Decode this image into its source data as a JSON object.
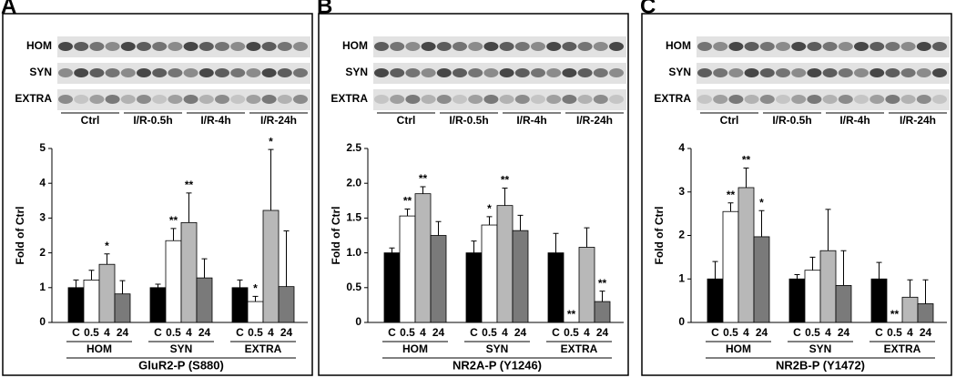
{
  "chart_data": [
    {
      "type": "bar",
      "panel_label": "A",
      "blot_rows": [
        "HOM",
        "SYN",
        "EXTRA"
      ],
      "blot_groups": [
        "Ctrl",
        "I/R-0.5h",
        "I/R-4h",
        "I/R-24h"
      ],
      "ylabel": "Fold of Ctrl",
      "xlabel": "GluR2-P (S880)",
      "categories": [
        "HOM",
        "SYN",
        "EXTRA"
      ],
      "ylim": [
        0,
        5
      ],
      "yticks": [
        0,
        1,
        2,
        3,
        4,
        5
      ],
      "series": [
        {
          "name": "C",
          "color": "#000000",
          "values": [
            1.0,
            1.0,
            1.0
          ],
          "errors": [
            0.22,
            0.1,
            0.22
          ],
          "significance": [
            null,
            null,
            null
          ]
        },
        {
          "name": "0.5",
          "color": "#ffffff",
          "values": [
            1.22,
            2.35,
            0.6
          ],
          "errors": [
            0.28,
            0.35,
            0.15
          ],
          "significance": [
            null,
            "**",
            "*"
          ]
        },
        {
          "name": "4",
          "color": "#b8b8b8",
          "values": [
            1.67,
            2.87,
            3.22
          ],
          "errors": [
            0.3,
            0.85,
            1.75
          ],
          "significance": [
            "*",
            "**",
            "*"
          ]
        },
        {
          "name": "24",
          "color": "#7a7a7a",
          "values": [
            0.82,
            1.28,
            1.03
          ],
          "errors": [
            0.38,
            0.55,
            1.6
          ],
          "significance": [
            null,
            null,
            null
          ]
        }
      ]
    },
    {
      "type": "bar",
      "panel_label": "B",
      "blot_rows": [
        "HOM",
        "SYN",
        "EXTRA"
      ],
      "blot_groups": [
        "Ctrl",
        "I/R-0.5h",
        "I/R-4h",
        "I/R-24h"
      ],
      "ylabel": "Fold of Ctrl",
      "xlabel": "NR2A-P (Y1246)",
      "categories": [
        "HOM",
        "SYN",
        "EXTRA"
      ],
      "ylim": [
        0,
        2.5
      ],
      "yticks": [
        0,
        0.5,
        {
          "value": 1,
          "label": "1.0"
        },
        1.5,
        {
          "value": 2,
          "label": "2.0"
        },
        2.5
      ],
      "series": [
        {
          "name": "C",
          "color": "#000000",
          "values": [
            1.0,
            1.0,
            1.0
          ],
          "errors": [
            0.07,
            0.17,
            0.28
          ],
          "significance": [
            null,
            null,
            null
          ]
        },
        {
          "name": "0.5",
          "color": "#ffffff",
          "values": [
            1.53,
            1.4,
            0
          ],
          "errors": [
            0.1,
            0.12,
            null
          ],
          "significance": [
            "**",
            "*",
            "**"
          ]
        },
        {
          "name": "4",
          "color": "#b8b8b8",
          "values": [
            1.85,
            1.68,
            1.08
          ],
          "errors": [
            0.1,
            0.25,
            0.28
          ],
          "significance": [
            "**",
            "**",
            null
          ]
        },
        {
          "name": "24",
          "color": "#7a7a7a",
          "values": [
            1.25,
            1.32,
            0.3
          ],
          "errors": [
            0.2,
            0.22,
            0.15
          ],
          "significance": [
            null,
            null,
            "**"
          ]
        }
      ]
    },
    {
      "type": "bar",
      "panel_label": "C",
      "blot_rows": [
        "HOM",
        "SYN",
        "EXTRA"
      ],
      "blot_groups": [
        "Ctrl",
        "I/R-0.5h",
        "I/R-4h",
        "I/R-24h"
      ],
      "ylabel": "Fold of Ctrl",
      "xlabel": "NR2B-P (Y1472)",
      "categories": [
        "HOM",
        "SYN",
        "EXTRA"
      ],
      "ylim": [
        0,
        4
      ],
      "yticks": [
        0,
        1,
        2,
        3,
        4
      ],
      "series": [
        {
          "name": "C",
          "color": "#000000",
          "values": [
            1.0,
            1.0,
            1.0
          ],
          "errors": [
            0.4,
            0.1,
            0.38
          ],
          "significance": [
            null,
            null,
            null
          ]
        },
        {
          "name": "0.5",
          "color": "#ffffff",
          "values": [
            2.55,
            1.2,
            0
          ],
          "errors": [
            0.2,
            0.3,
            null
          ],
          "significance": [
            "**",
            null,
            "**"
          ]
        },
        {
          "name": "4",
          "color": "#b8b8b8",
          "values": [
            3.1,
            1.65,
            0.58
          ],
          "errors": [
            0.45,
            0.95,
            0.4
          ],
          "significance": [
            "**",
            null,
            null
          ]
        },
        {
          "name": "24",
          "color": "#7a7a7a",
          "values": [
            1.97,
            0.85,
            0.43
          ],
          "errors": [
            0.6,
            0.8,
            0.55
          ],
          "significance": [
            "*",
            null,
            null
          ]
        }
      ]
    }
  ]
}
